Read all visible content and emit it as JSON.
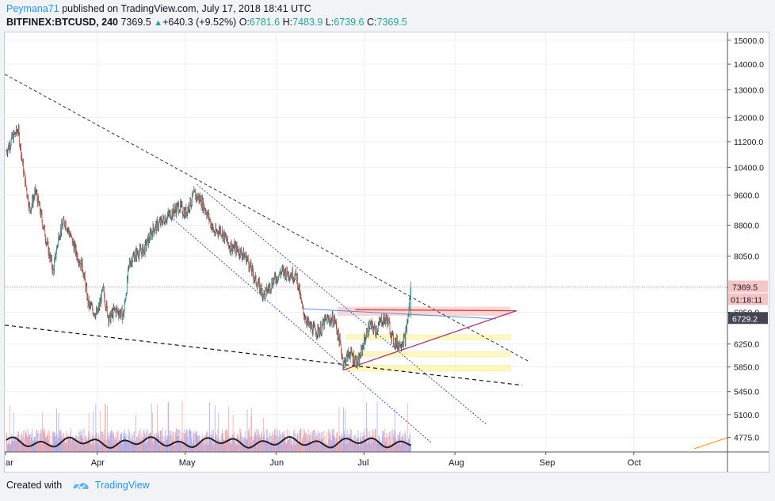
{
  "header": {
    "author": "Peymana71",
    "published_text": "published on TradingView.com, July 17, 2018 18:41 UTC",
    "symbol": "BITFINEX:BTCUSD, 240",
    "last": "7369.5",
    "change": "+640.3 (+9.52%)",
    "o_label": "O:",
    "o": "6781.6",
    "h_label": "H:",
    "h": "7483.9",
    "l_label": "L:",
    "l": "6739.6",
    "c_label": "C:",
    "c": "7369.5"
  },
  "footer": {
    "created_with": "Created with",
    "brand": "TradingView"
  },
  "colors": {
    "up": "#26a69a",
    "down": "#ef5350",
    "accent": "#2196f3",
    "red_line": "#e53935",
    "blue_line": "#3f51b5"
  },
  "chart_data": {
    "type": "candlestick",
    "symbol": "BITFINEX:BTCUSD",
    "interval": "240",
    "ylim": [
      4580,
      15200
    ],
    "y_ticks": [
      15000,
      14000,
      13000,
      12000,
      11200,
      10400,
      9600,
      8800,
      8050,
      7350,
      6850,
      6250,
      5850,
      5450,
      5100,
      4775
    ],
    "y_tick_labels": [
      "15000.0",
      "14000.0",
      "13000.0",
      "12000.0",
      "11200.0",
      "10400.0",
      "9600.0",
      "8800.0",
      "8050.0",
      "7350.0",
      "6850.0",
      "6250.0",
      "5850.0",
      "5450.0",
      "5100.0",
      "4775.0"
    ],
    "x_tick_labels": [
      "ar",
      "Apr",
      "May",
      "Jun",
      "Jul",
      "Aug",
      "Sep",
      "Oct"
    ],
    "price_labels": {
      "last": "7369.5",
      "countdown": "01:18:11",
      "line_value": "6729.2"
    },
    "price_path": [
      [
        "2018-03-01",
        10900
      ],
      [
        "2018-03-03",
        11300
      ],
      [
        "2018-03-05",
        11600
      ],
      [
        "2018-03-07",
        10200
      ],
      [
        "2018-03-09",
        9200
      ],
      [
        "2018-03-11",
        9700
      ],
      [
        "2018-03-13",
        9000
      ],
      [
        "2018-03-15",
        8300
      ],
      [
        "2018-03-17",
        7700
      ],
      [
        "2018-03-19",
        8600
      ],
      [
        "2018-03-21",
        8900
      ],
      [
        "2018-03-23",
        8500
      ],
      [
        "2018-03-25",
        8100
      ],
      [
        "2018-03-27",
        7800
      ],
      [
        "2018-03-29",
        7000
      ],
      [
        "2018-04-01",
        6800
      ],
      [
        "2018-04-03",
        7300
      ],
      [
        "2018-04-05",
        6700
      ],
      [
        "2018-04-07",
        6900
      ],
      [
        "2018-04-10",
        6800
      ],
      [
        "2018-04-12",
        7900
      ],
      [
        "2018-04-14",
        8100
      ],
      [
        "2018-04-17",
        8200
      ],
      [
        "2018-04-20",
        8700
      ],
      [
        "2018-04-23",
        8900
      ],
      [
        "2018-04-26",
        9100
      ],
      [
        "2018-04-29",
        9300
      ],
      [
        "2018-05-01",
        9100
      ],
      [
        "2018-05-04",
        9600
      ],
      [
        "2018-05-06",
        9500
      ],
      [
        "2018-05-08",
        9200
      ],
      [
        "2018-05-11",
        8600
      ],
      [
        "2018-05-13",
        8700
      ],
      [
        "2018-05-16",
        8300
      ],
      [
        "2018-05-19",
        8200
      ],
      [
        "2018-05-22",
        8000
      ],
      [
        "2018-05-25",
        7500
      ],
      [
        "2018-05-28",
        7200
      ],
      [
        "2018-05-31",
        7500
      ],
      [
        "2018-06-03",
        7700
      ],
      [
        "2018-06-06",
        7650
      ],
      [
        "2018-06-08",
        7600
      ],
      [
        "2018-06-10",
        6900
      ],
      [
        "2018-06-12",
        6600
      ],
      [
        "2018-06-14",
        6500
      ],
      [
        "2018-06-16",
        6500
      ],
      [
        "2018-06-18",
        6700
      ],
      [
        "2018-06-21",
        6700
      ],
      [
        "2018-06-23",
        6200
      ],
      [
        "2018-06-24",
        5900
      ],
      [
        "2018-06-26",
        6100
      ],
      [
        "2018-06-29",
        5900
      ],
      [
        "2018-07-01",
        6300
      ],
      [
        "2018-07-03",
        6600
      ],
      [
        "2018-07-05",
        6500
      ],
      [
        "2018-07-07",
        6700
      ],
      [
        "2018-07-09",
        6700
      ],
      [
        "2018-07-11",
        6300
      ],
      [
        "2018-07-13",
        6250
      ],
      [
        "2018-07-15",
        6350
      ],
      [
        "2018-07-16",
        6750
      ],
      [
        "2018-07-17",
        7369.5
      ]
    ],
    "volume_level": "low-relative-to-chart"
  }
}
